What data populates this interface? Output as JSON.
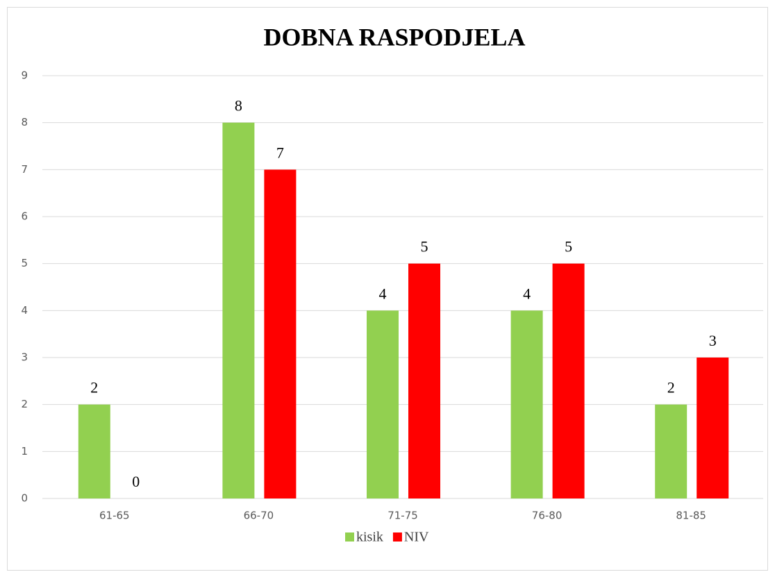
{
  "chart_data": {
    "type": "bar",
    "title": "DOBNA RASPODJELA",
    "categories": [
      "61-65",
      "66-70",
      "71-75",
      "76-80",
      "81-85"
    ],
    "series": [
      {
        "name": "kisik",
        "color": "#92d050",
        "values": [
          2,
          8,
          4,
          4,
          2
        ]
      },
      {
        "name": "NIV",
        "color": "#ff0000",
        "values": [
          0,
          7,
          5,
          5,
          3
        ]
      }
    ],
    "ylim": [
      0,
      9
    ],
    "yticks": [
      0,
      1,
      2,
      3,
      4,
      5,
      6,
      7,
      8,
      9
    ],
    "grid": true,
    "legend": "bottom"
  }
}
